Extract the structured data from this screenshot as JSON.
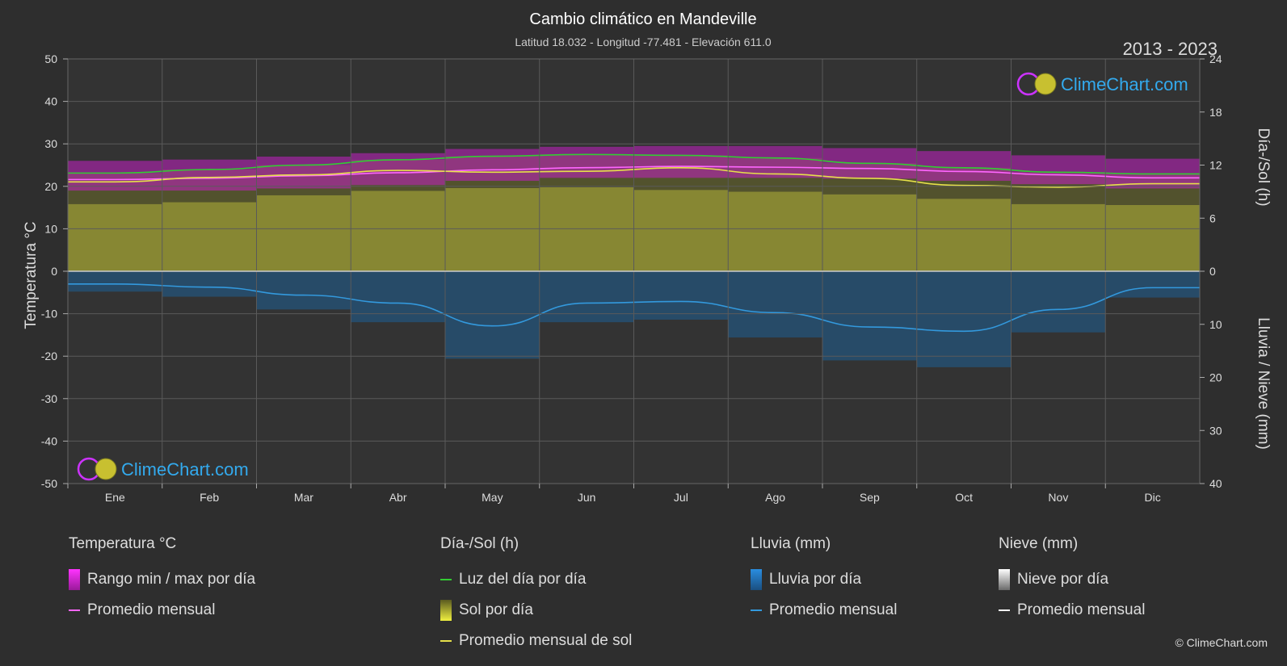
{
  "chart_data": {
    "type": "area",
    "title": "Cambio climático en Mandeville",
    "subtitle": "Latitud 18.032 - Longitud -77.481 - Elevación 611.0",
    "period": "2013 - 2023",
    "months": [
      "Ene",
      "Feb",
      "Mar",
      "Abr",
      "May",
      "Jun",
      "Jul",
      "Ago",
      "Sep",
      "Oct",
      "Nov",
      "Dic"
    ],
    "y_left": {
      "label": "Temperatura °C",
      "min": -50,
      "max": 50,
      "ticks": [
        "50",
        "40",
        "30",
        "20",
        "10",
        "0",
        "-10",
        "-20",
        "-30",
        "-40",
        "-50"
      ]
    },
    "y_right_top": {
      "label": "Día-/Sol (h)",
      "min": 0,
      "max": 24,
      "ticks": [
        "24",
        "18",
        "12",
        "6",
        "0"
      ]
    },
    "y_right_bottom": {
      "label": "Lluvia / Nieve (mm)",
      "min": 0,
      "max": 40,
      "ticks": [
        "0",
        "10",
        "20",
        "30",
        "40"
      ]
    },
    "series": [
      {
        "name": "Luz del día por día",
        "unit": "h",
        "color": "#33cc33",
        "values": [
          11.1,
          11.5,
          12.0,
          12.6,
          13.0,
          13.2,
          13.1,
          12.8,
          12.2,
          11.7,
          11.2,
          11.0
        ]
      },
      {
        "name": "Promedio mensual de sol",
        "unit": "h",
        "color": "#e6e04a",
        "values": [
          10.1,
          10.6,
          10.9,
          11.4,
          11.2,
          11.3,
          11.7,
          11.0,
          10.5,
          9.7,
          9.5,
          9.9
        ]
      },
      {
        "name": "Sol por día",
        "unit": "h",
        "color": "#a0a030",
        "values": [
          7.6,
          7.8,
          8.6,
          9.1,
          9.4,
          9.5,
          9.2,
          9.0,
          8.7,
          8.2,
          7.6,
          7.5
        ]
      },
      {
        "name": "Promedio mensual",
        "group": "Temperatura °C",
        "unit": "°C",
        "color": "#ff66ff",
        "values": [
          21.6,
          21.9,
          22.5,
          23.2,
          23.9,
          24.4,
          24.7,
          24.5,
          24.2,
          23.5,
          22.7,
          22.0
        ]
      },
      {
        "name": "Rango min / max por día",
        "unit": "°C",
        "color": "#cc22cc",
        "min": [
          19.0,
          19.0,
          19.5,
          20.3,
          21.3,
          22.0,
          22.0,
          22.0,
          21.8,
          21.3,
          20.5,
          19.5
        ],
        "max": [
          26.0,
          26.3,
          27.0,
          27.8,
          28.8,
          29.3,
          29.5,
          29.5,
          29.0,
          28.3,
          27.3,
          26.5
        ]
      },
      {
        "name": "Promedio mensual",
        "group": "Lluvia (mm)",
        "unit": "mm",
        "color": "#3399dd",
        "values": [
          2.4,
          3.0,
          4.5,
          6.0,
          10.3,
          6.0,
          5.7,
          7.8,
          10.5,
          11.3,
          7.2,
          3.1
        ]
      }
    ],
    "legend": [
      {
        "title": "Temperatura °C",
        "items": [
          {
            "type": "rect",
            "color": "#cc22cc",
            "label": "Rango min / max por día"
          },
          {
            "type": "line",
            "color": "#ff66ff",
            "label": "Promedio mensual"
          }
        ]
      },
      {
        "title": "Día-/Sol (h)",
        "items": [
          {
            "type": "line",
            "color": "#33cc33",
            "label": "Luz del día por día"
          },
          {
            "type": "rect",
            "color": "#c8c838",
            "label": "Sol por día"
          },
          {
            "type": "line",
            "color": "#e6e04a",
            "label": "Promedio mensual de sol"
          }
        ]
      },
      {
        "title": "Lluvia (mm)",
        "items": [
          {
            "type": "rect",
            "color": "#1e7fd0",
            "label": "Lluvia por día"
          },
          {
            "type": "line",
            "color": "#3399dd",
            "label": "Promedio mensual"
          }
        ]
      },
      {
        "title": "Nieve (mm)",
        "items": [
          {
            "type": "rect",
            "color": "#dddddd",
            "label": "Nieve por día"
          },
          {
            "type": "line",
            "color": "#ffffff",
            "label": "Promedio mensual"
          }
        ]
      }
    ],
    "grid": true
  },
  "brand": {
    "name": "ClimeChart.com",
    "copyright": "© ClimeChart.com"
  }
}
